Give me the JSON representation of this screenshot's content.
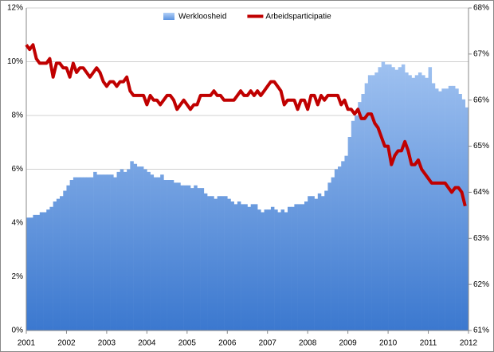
{
  "chart_data": {
    "type": "bar",
    "x": [
      2001,
      2001.083,
      2001.167,
      2001.25,
      2001.333,
      2001.417,
      2001.5,
      2001.583,
      2001.667,
      2001.75,
      2001.833,
      2001.917,
      2002,
      2002.083,
      2002.167,
      2002.25,
      2002.333,
      2002.417,
      2002.5,
      2002.583,
      2002.667,
      2002.75,
      2002.833,
      2002.917,
      2003,
      2003.083,
      2003.167,
      2003.25,
      2003.333,
      2003.417,
      2003.5,
      2003.583,
      2003.667,
      2003.75,
      2003.833,
      2003.917,
      2004,
      2004.083,
      2004.167,
      2004.25,
      2004.333,
      2004.417,
      2004.5,
      2004.583,
      2004.667,
      2004.75,
      2004.833,
      2004.917,
      2005,
      2005.083,
      2005.167,
      2005.25,
      2005.333,
      2005.417,
      2005.5,
      2005.583,
      2005.667,
      2005.75,
      2005.833,
      2005.917,
      2006,
      2006.083,
      2006.167,
      2006.25,
      2006.333,
      2006.417,
      2006.5,
      2006.583,
      2006.667,
      2006.75,
      2006.833,
      2006.917,
      2007,
      2007.083,
      2007.167,
      2007.25,
      2007.333,
      2007.417,
      2007.5,
      2007.583,
      2007.667,
      2007.75,
      2007.833,
      2007.917,
      2008,
      2008.083,
      2008.167,
      2008.25,
      2008.333,
      2008.417,
      2008.5,
      2008.583,
      2008.667,
      2008.75,
      2008.833,
      2008.917,
      2009,
      2009.083,
      2009.167,
      2009.25,
      2009.333,
      2009.417,
      2009.5,
      2009.583,
      2009.667,
      2009.75,
      2009.833,
      2009.917,
      2010,
      2010.083,
      2010.167,
      2010.25,
      2010.333,
      2010.417,
      2010.5,
      2010.583,
      2010.667,
      2010.75,
      2010.833,
      2010.917,
      2011,
      2011.083,
      2011.167,
      2011.25,
      2011.333,
      2011.417,
      2011.5,
      2011.583,
      2011.667,
      2011.75,
      2011.833,
      2011.917
    ],
    "series": [
      {
        "name": "Werkloosheid",
        "type": "bar",
        "color": "#5b93e0",
        "values": [
          4.2,
          4.2,
          4.3,
          4.3,
          4.4,
          4.4,
          4.5,
          4.6,
          4.8,
          4.9,
          5.0,
          5.2,
          5.4,
          5.6,
          5.7,
          5.7,
          5.7,
          5.7,
          5.7,
          5.7,
          5.9,
          5.8,
          5.8,
          5.8,
          5.8,
          5.8,
          5.7,
          5.9,
          6.0,
          5.9,
          6.0,
          6.3,
          6.2,
          6.1,
          6.1,
          6.0,
          5.9,
          5.8,
          5.7,
          5.7,
          5.8,
          5.6,
          5.6,
          5.6,
          5.5,
          5.5,
          5.4,
          5.4,
          5.4,
          5.3,
          5.4,
          5.3,
          5.3,
          5.1,
          5.0,
          5.0,
          4.9,
          5.0,
          5.0,
          5.0,
          4.9,
          4.8,
          4.7,
          4.8,
          4.7,
          4.7,
          4.6,
          4.7,
          4.7,
          4.5,
          4.4,
          4.5,
          4.5,
          4.6,
          4.5,
          4.4,
          4.5,
          4.4,
          4.6,
          4.6,
          4.7,
          4.7,
          4.7,
          4.8,
          5.0,
          5.0,
          4.9,
          5.1,
          5.0,
          5.2,
          5.5,
          5.7,
          6.0,
          6.1,
          6.3,
          6.5,
          7.2,
          7.8,
          8.0,
          8.5,
          8.8,
          9.2,
          9.5,
          9.5,
          9.6,
          9.8,
          10.0,
          9.9,
          9.9,
          9.8,
          9.7,
          9.8,
          9.9,
          9.6,
          9.5,
          9.4,
          9.5,
          9.6,
          9.5,
          9.4,
          9.8,
          9.2,
          9.0,
          8.9,
          9.0,
          9.0,
          9.1,
          9.1,
          9.0,
          8.8,
          8.6,
          8.3
        ]
      },
      {
        "name": "Arbeidsparticipatie",
        "type": "line",
        "axis": "y2",
        "color": "#c00000",
        "values": [
          67.2,
          67.1,
          67.2,
          66.9,
          66.8,
          66.8,
          66.8,
          66.9,
          66.5,
          66.8,
          66.8,
          66.7,
          66.7,
          66.5,
          66.8,
          66.6,
          66.7,
          66.7,
          66.6,
          66.5,
          66.6,
          66.7,
          66.6,
          66.4,
          66.3,
          66.4,
          66.4,
          66.3,
          66.4,
          66.4,
          66.5,
          66.2,
          66.1,
          66.1,
          66.1,
          66.1,
          65.9,
          66.1,
          66.0,
          66.0,
          65.9,
          66.0,
          66.1,
          66.1,
          66.0,
          65.8,
          65.9,
          66.0,
          65.9,
          65.8,
          65.9,
          65.9,
          66.1,
          66.1,
          66.1,
          66.1,
          66.2,
          66.1,
          66.1,
          66.0,
          66.0,
          66.0,
          66.0,
          66.1,
          66.2,
          66.1,
          66.1,
          66.2,
          66.1,
          66.2,
          66.1,
          66.2,
          66.3,
          66.4,
          66.4,
          66.3,
          66.2,
          65.9,
          66.0,
          66.0,
          66.0,
          65.8,
          66.0,
          66.0,
          65.8,
          66.1,
          66.1,
          65.9,
          66.1,
          66.0,
          66.1,
          66.1,
          66.1,
          66.1,
          65.9,
          66.0,
          65.8,
          65.8,
          65.7,
          65.8,
          65.6,
          65.6,
          65.7,
          65.7,
          65.5,
          65.4,
          65.2,
          65.0,
          65.0,
          64.6,
          64.8,
          64.9,
          64.9,
          65.1,
          64.9,
          64.6,
          64.6,
          64.7,
          64.5,
          64.4,
          64.3,
          64.2,
          64.2,
          64.2,
          64.2,
          64.2,
          64.1,
          64.0,
          64.1,
          64.1,
          64.0,
          63.7
        ]
      }
    ],
    "xlim": [
      2001,
      2012
    ],
    "xticks": [
      2001,
      2002,
      2003,
      2004,
      2005,
      2006,
      2007,
      2008,
      2009,
      2010,
      2011,
      2012
    ],
    "ylim": [
      0,
      12
    ],
    "yticks": [
      {
        "value": 0,
        "label": "0%"
      },
      {
        "value": 2,
        "label": "2%"
      },
      {
        "value": 4,
        "label": "4%"
      },
      {
        "value": 6,
        "label": "6%"
      },
      {
        "value": 8,
        "label": "8%"
      },
      {
        "value": 10,
        "label": "10%"
      },
      {
        "value": 12,
        "label": "12%"
      }
    ],
    "y2lim": [
      61,
      68
    ],
    "y2ticks": [
      {
        "value": 61,
        "label": "61%"
      },
      {
        "value": 62,
        "label": "62%"
      },
      {
        "value": 63,
        "label": "63%"
      },
      {
        "value": 64,
        "label": "64%"
      },
      {
        "value": 65,
        "label": "65%"
      },
      {
        "value": 66,
        "label": "66%"
      },
      {
        "value": 67,
        "label": "67%"
      },
      {
        "value": 68,
        "label": "68%"
      }
    ],
    "grid": true,
    "legend": "top"
  }
}
